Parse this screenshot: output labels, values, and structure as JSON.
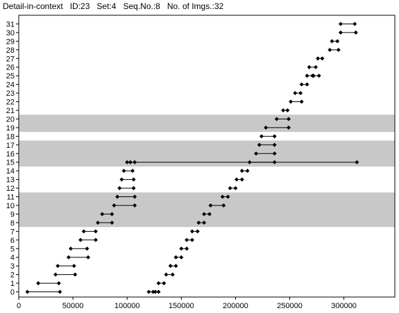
{
  "header": {
    "title": "Detail-in-context",
    "id_label": "ID:23",
    "set_label": "Set:4",
    "seq_label": "Seq.No.:8",
    "imgs_label": "No. of Imgs.:32"
  },
  "colors": {
    "band": "#c8c8c8",
    "marker": "#000000",
    "axis": "#000000"
  },
  "chart_data": {
    "type": "dumbbell",
    "title": "",
    "xlabel": "",
    "ylabel": "",
    "xlim": [
      0,
      347000
    ],
    "ylim": [
      -0.6,
      32.0
    ],
    "grid": false,
    "x_ticks": [
      0,
      50000,
      100000,
      150000,
      200000,
      250000,
      300000
    ],
    "x_tick_labels": [
      "0",
      "50000",
      "100000",
      "150000",
      "200000",
      "250000",
      "300000"
    ],
    "y_ticks": [
      0,
      1,
      2,
      3,
      4,
      5,
      6,
      7,
      8,
      9,
      10,
      11,
      12,
      13,
      14,
      15,
      16,
      17,
      18,
      19,
      20,
      21,
      22,
      23,
      24,
      25,
      26,
      27,
      28,
      29,
      30,
      31
    ],
    "y_tick_labels": [
      "0",
      "1",
      "2",
      "3",
      "4",
      "5",
      "6",
      "7",
      "8",
      "9",
      "10",
      "11",
      "12",
      "13",
      "14",
      "15",
      "16",
      "17",
      "18",
      "19",
      "20",
      "21",
      "22",
      "23",
      "24",
      "25",
      "26",
      "27",
      "28",
      "29",
      "30",
      "31"
    ],
    "highlight_bands": [
      {
        "from": 7.5,
        "to": 11.5
      },
      {
        "from": 14.5,
        "to": 17.5
      },
      {
        "from": 18.5,
        "to": 20.5
      }
    ],
    "left_segments": [
      {
        "y": 0,
        "x1": 8000,
        "x2": 38000
      },
      {
        "y": 1,
        "x1": 18000,
        "x2": 37000
      },
      {
        "y": 2,
        "x1": 34000,
        "x2": 52000
      },
      {
        "y": 3,
        "x1": 36000,
        "x2": 51000
      },
      {
        "y": 4,
        "x1": 46000,
        "x2": 64000
      },
      {
        "y": 5,
        "x1": 48000,
        "x2": 63000
      },
      {
        "y": 6,
        "x1": 57000,
        "x2": 71000
      },
      {
        "y": 7,
        "x1": 60000,
        "x2": 71000
      },
      {
        "y": 8,
        "x1": 73000,
        "x2": 86000
      },
      {
        "y": 9,
        "x1": 77000,
        "x2": 86000
      },
      {
        "y": 10,
        "x1": 88000,
        "x2": 107000
      },
      {
        "y": 11,
        "x1": 91000,
        "x2": 107000
      },
      {
        "y": 12,
        "x1": 93000,
        "x2": 106000
      },
      {
        "y": 13,
        "x1": 95000,
        "x2": 106000
      },
      {
        "y": 14,
        "x1": 97000,
        "x2": 105000
      },
      {
        "y": 15,
        "x1": 100000,
        "x2": 312000
      }
    ],
    "left_inner_points": [
      {
        "y": 15,
        "x": 103000
      },
      {
        "y": 15,
        "x": 107000
      }
    ],
    "right_segments": [
      {
        "y": 0,
        "x1": 120000,
        "x2": 129000
      },
      {
        "y": 1,
        "x1": 129000,
        "x2": 134000
      },
      {
        "y": 2,
        "x1": 136000,
        "x2": 142000
      },
      {
        "y": 3,
        "x1": 140000,
        "x2": 145000
      },
      {
        "y": 4,
        "x1": 145000,
        "x2": 150000
      },
      {
        "y": 5,
        "x1": 150000,
        "x2": 155000
      },
      {
        "y": 6,
        "x1": 155000,
        "x2": 160000
      },
      {
        "y": 7,
        "x1": 160000,
        "x2": 165000
      },
      {
        "y": 8,
        "x1": 166000,
        "x2": 171000
      },
      {
        "y": 9,
        "x1": 171000,
        "x2": 176000
      },
      {
        "y": 10,
        "x1": 177000,
        "x2": 189000
      },
      {
        "y": 11,
        "x1": 188000,
        "x2": 193000
      },
      {
        "y": 12,
        "x1": 195000,
        "x2": 200000
      },
      {
        "y": 13,
        "x1": 201000,
        "x2": 206000
      },
      {
        "y": 14,
        "x1": 206000,
        "x2": 211000
      },
      {
        "y": 15,
        "x1": 213000,
        "x2": 236000
      },
      {
        "y": 16,
        "x1": 219000,
        "x2": 236000
      },
      {
        "y": 17,
        "x1": 222000,
        "x2": 236000
      },
      {
        "y": 18,
        "x1": 224000,
        "x2": 236000
      },
      {
        "y": 19,
        "x1": 228000,
        "x2": 249000
      },
      {
        "y": 20,
        "x1": 238000,
        "x2": 249000
      },
      {
        "y": 21,
        "x1": 244000,
        "x2": 248000
      },
      {
        "y": 22,
        "x1": 251000,
        "x2": 261000
      },
      {
        "y": 23,
        "x1": 255000,
        "x2": 260000
      },
      {
        "y": 24,
        "x1": 261000,
        "x2": 266000
      },
      {
        "y": 25,
        "x1": 266000,
        "x2": 277000
      },
      {
        "y": 26,
        "x1": 268000,
        "x2": 274000
      },
      {
        "y": 27,
        "x1": 276000,
        "x2": 280000
      },
      {
        "y": 28,
        "x1": 287000,
        "x2": 295000
      },
      {
        "y": 29,
        "x1": 289000,
        "x2": 294000
      },
      {
        "y": 30,
        "x1": 297000,
        "x2": 311000
      },
      {
        "y": 31,
        "x1": 297000,
        "x2": 310000
      }
    ],
    "right_inner_points": [
      {
        "y": 0,
        "x": 124000
      },
      {
        "y": 0,
        "x": 126000
      },
      {
        "y": 25,
        "x": 271000
      },
      {
        "y": 25,
        "x": 272000
      }
    ]
  }
}
